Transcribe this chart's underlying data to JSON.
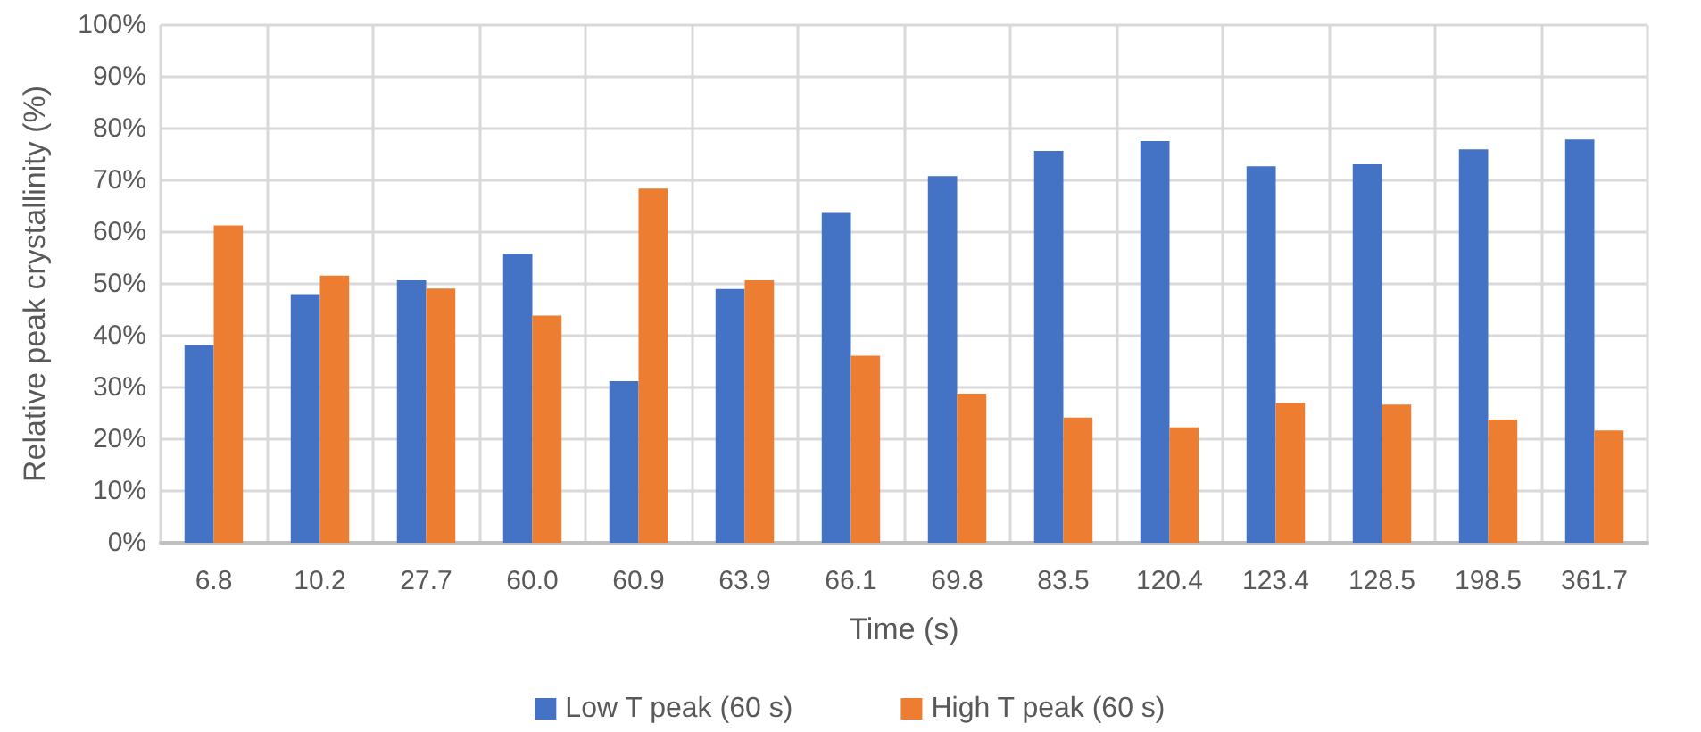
{
  "chart_data": {
    "type": "bar",
    "xlabel": "Time (s)",
    "ylabel": "Relative peak crystallinity (%)",
    "categories": [
      "6.8",
      "10.2",
      "27.7",
      "60.0",
      "60.9",
      "63.9",
      "66.1",
      "69.8",
      "83.5",
      "120.4",
      "123.4",
      "128.5",
      "198.5",
      "361.7"
    ],
    "series": [
      {
        "name": "Low T peak (60 s)",
        "color": "#4472c4",
        "values": [
          38.2,
          48.0,
          50.7,
          55.8,
          31.2,
          49.0,
          63.7,
          70.8,
          75.7,
          77.6,
          72.7,
          73.1,
          76.0,
          77.9
        ]
      },
      {
        "name": "High T peak (60 s)",
        "color": "#ed7d31",
        "values": [
          61.3,
          51.6,
          49.1,
          43.9,
          68.4,
          50.7,
          36.1,
          28.8,
          24.2,
          22.3,
          27.0,
          26.7,
          23.8,
          21.7
        ]
      }
    ],
    "ylim": [
      0,
      100
    ],
    "yticks": [
      {
        "value": 0,
        "label": "0%"
      },
      {
        "value": 10,
        "label": "10%"
      },
      {
        "value": 20,
        "label": "20%"
      },
      {
        "value": 30,
        "label": "30%"
      },
      {
        "value": 40,
        "label": "40%"
      },
      {
        "value": 50,
        "label": "50%"
      },
      {
        "value": 60,
        "label": "60%"
      },
      {
        "value": 70,
        "label": "70%"
      },
      {
        "value": 80,
        "label": "80%"
      },
      {
        "value": 90,
        "label": "90%"
      },
      {
        "value": 100,
        "label": "100%"
      }
    ],
    "grid": true,
    "legend": "bottom"
  }
}
